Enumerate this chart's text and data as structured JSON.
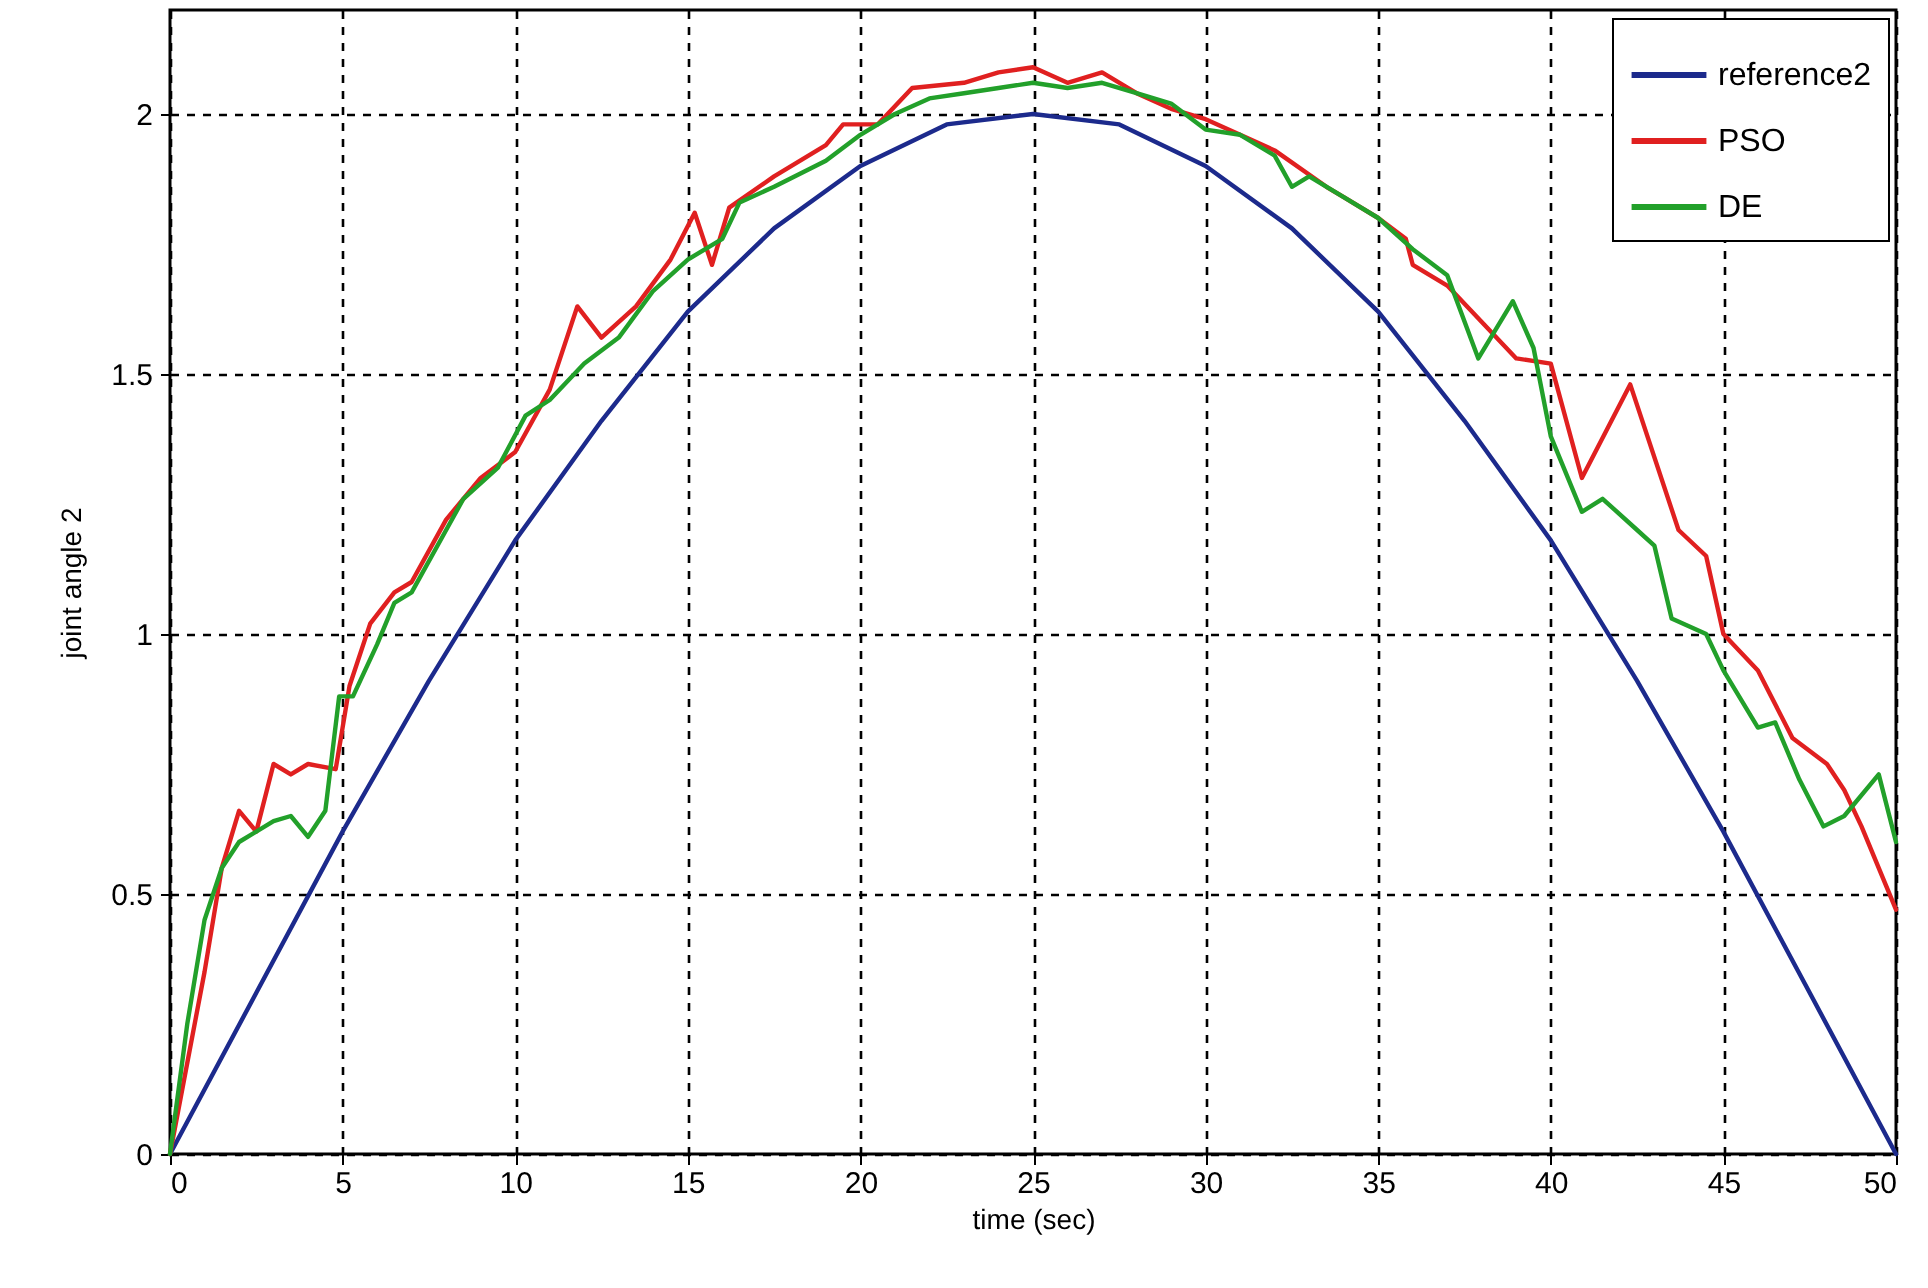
{
  "chart_data": {
    "type": "line",
    "xlabel": "time (sec)",
    "ylabel": "joint angle 2",
    "xlim": [
      0,
      50
    ],
    "ylim": [
      0,
      2.2
    ],
    "xticks": [
      0,
      5,
      10,
      15,
      20,
      25,
      30,
      35,
      40,
      45,
      50
    ],
    "yticks": [
      0,
      0.5,
      1,
      1.5,
      2
    ],
    "grid": true,
    "legend": "top right",
    "marker": "none",
    "line_style": "solid",
    "series": [
      {
        "name": "reference2",
        "color": "#1c2a8c",
        "x": [
          0,
          2.5,
          5,
          7.5,
          10,
          12.5,
          15,
          17.5,
          20,
          22.5,
          25,
          27.5,
          30,
          32.5,
          35,
          37.5,
          40,
          42.5,
          45,
          47.5,
          50
        ],
        "values": [
          0,
          0.31,
          0.62,
          0.91,
          1.18,
          1.41,
          1.62,
          1.78,
          1.9,
          1.98,
          2.0,
          1.98,
          1.9,
          1.78,
          1.62,
          1.41,
          1.18,
          0.91,
          0.62,
          0.31,
          0
        ]
      },
      {
        "name": "PSO",
        "color": "#e02020",
        "x": [
          0,
          1,
          1.5,
          2,
          2.5,
          3,
          3.5,
          4,
          4.8,
          5.2,
          5.8,
          6.5,
          7,
          8,
          9,
          10,
          11,
          11.8,
          12.5,
          13.5,
          14.5,
          15.2,
          15.7,
          16.2,
          17.5,
          19,
          19.5,
          20.5,
          21.5,
          23,
          24,
          25,
          26,
          27,
          28,
          29,
          30,
          31,
          32,
          33.5,
          34,
          35,
          35.8,
          36,
          37,
          38,
          39,
          40,
          40.9,
          42.3,
          43.7,
          44.5,
          45,
          46,
          47,
          48,
          48.5,
          49,
          50
        ],
        "values": [
          0,
          0.35,
          0.55,
          0.66,
          0.62,
          0.75,
          0.73,
          0.75,
          0.74,
          0.9,
          1.02,
          1.08,
          1.1,
          1.22,
          1.3,
          1.35,
          1.47,
          1.63,
          1.57,
          1.63,
          1.72,
          1.81,
          1.71,
          1.82,
          1.88,
          1.94,
          1.98,
          1.98,
          2.05,
          2.06,
          2.08,
          2.09,
          2.06,
          2.08,
          2.04,
          2.01,
          1.99,
          1.96,
          1.93,
          1.86,
          1.84,
          1.8,
          1.76,
          1.71,
          1.67,
          1.6,
          1.53,
          1.52,
          1.3,
          1.48,
          1.2,
          1.15,
          1.0,
          0.93,
          0.8,
          0.75,
          0.7,
          0.63,
          0.47
        ]
      },
      {
        "name": "DE",
        "color": "#22a02a",
        "x": [
          0,
          0.5,
          1,
          1.5,
          2,
          3,
          3.5,
          4,
          4.5,
          4.9,
          5.3,
          6,
          6.5,
          7,
          8,
          8.5,
          9.5,
          10.3,
          11,
          12,
          13,
          14,
          15,
          16,
          16.5,
          17.5,
          19,
          20,
          21,
          22,
          23,
          24,
          25,
          26,
          27,
          28,
          29,
          30,
          31,
          32,
          32.5,
          33,
          34,
          35,
          36,
          37,
          37.9,
          38.9,
          39.5,
          40,
          40.9,
          41.5,
          42.5,
          43,
          43.5,
          44.5,
          45,
          46,
          46.5,
          47.2,
          47.9,
          48.5,
          49.5,
          50
        ],
        "values": [
          0,
          0.25,
          0.45,
          0.55,
          0.6,
          0.64,
          0.65,
          0.61,
          0.66,
          0.88,
          0.88,
          0.98,
          1.06,
          1.08,
          1.2,
          1.26,
          1.32,
          1.42,
          1.45,
          1.52,
          1.57,
          1.66,
          1.72,
          1.76,
          1.83,
          1.86,
          1.91,
          1.96,
          2.0,
          2.03,
          2.04,
          2.05,
          2.06,
          2.05,
          2.06,
          2.04,
          2.02,
          1.97,
          1.96,
          1.92,
          1.86,
          1.88,
          1.84,
          1.8,
          1.74,
          1.69,
          1.53,
          1.64,
          1.55,
          1.38,
          1.235,
          1.26,
          1.2,
          1.17,
          1.03,
          1.0,
          0.93,
          0.82,
          0.83,
          0.72,
          0.63,
          0.65,
          0.73,
          0.6
        ]
      }
    ]
  }
}
